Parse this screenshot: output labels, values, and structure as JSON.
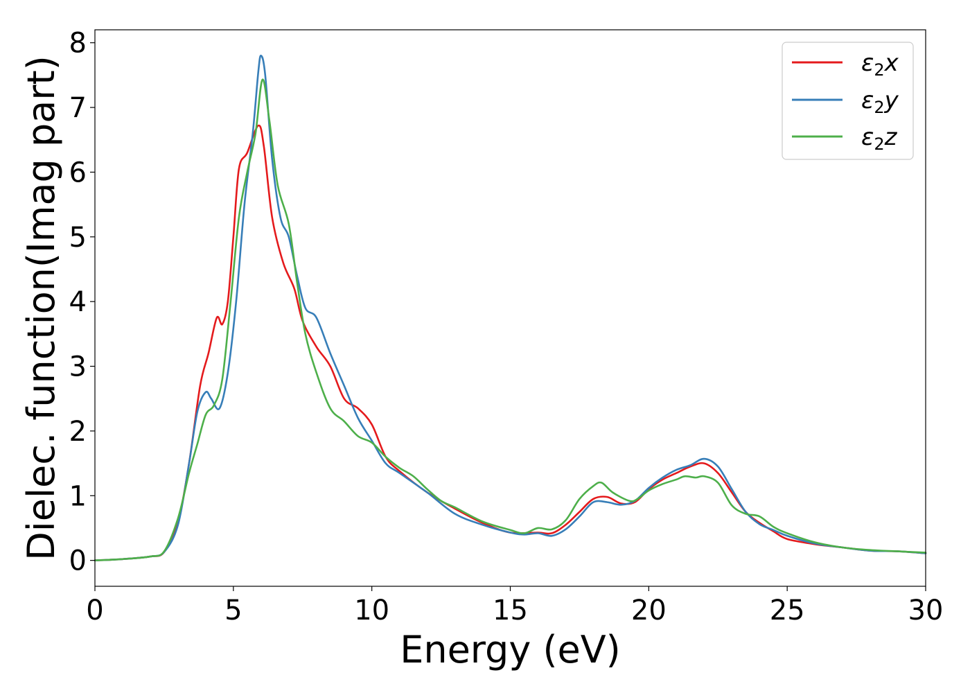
{
  "chart_data": {
    "type": "line",
    "title": "",
    "xlabel": "Energy (eV)",
    "ylabel": "Dielec. function(Imag part)",
    "xlim": [
      0,
      30
    ],
    "ylim": [
      -0.4,
      8.2
    ],
    "xticks": [
      0,
      5,
      10,
      15,
      20,
      25,
      30
    ],
    "yticks": [
      0,
      1,
      2,
      3,
      4,
      5,
      6,
      7,
      8
    ],
    "grid": false,
    "legend_position": "top-right",
    "series": [
      {
        "name": "ε₂x",
        "legend_main": "ε",
        "legend_sub": "2",
        "legend_suffix": "x",
        "color": "#e41a1c",
        "points": [
          [
            0,
            0
          ],
          [
            1,
            0.02
          ],
          [
            2,
            0.06
          ],
          [
            2.5,
            0.13
          ],
          [
            3,
            0.6
          ],
          [
            3.4,
            1.5
          ],
          [
            3.8,
            2.7
          ],
          [
            4.1,
            3.2
          ],
          [
            4.4,
            3.75
          ],
          [
            4.6,
            3.65
          ],
          [
            4.8,
            4.0
          ],
          [
            5.0,
            5.0
          ],
          [
            5.2,
            6.05
          ],
          [
            5.5,
            6.3
          ],
          [
            5.9,
            6.72
          ],
          [
            6.1,
            6.4
          ],
          [
            6.4,
            5.3
          ],
          [
            6.8,
            4.6
          ],
          [
            7.2,
            4.2
          ],
          [
            7.5,
            3.7
          ],
          [
            8.0,
            3.3
          ],
          [
            8.5,
            3.0
          ],
          [
            9.0,
            2.5
          ],
          [
            9.5,
            2.35
          ],
          [
            10.0,
            2.1
          ],
          [
            10.5,
            1.6
          ],
          [
            11.0,
            1.38
          ],
          [
            12.0,
            1.05
          ],
          [
            13.0,
            0.8
          ],
          [
            14.0,
            0.58
          ],
          [
            15.0,
            0.43
          ],
          [
            16.0,
            0.43
          ],
          [
            16.5,
            0.42
          ],
          [
            17.0,
            0.55
          ],
          [
            17.5,
            0.75
          ],
          [
            18.0,
            0.95
          ],
          [
            18.5,
            0.98
          ],
          [
            19.0,
            0.88
          ],
          [
            19.5,
            0.9
          ],
          [
            20.0,
            1.1
          ],
          [
            20.5,
            1.25
          ],
          [
            21.0,
            1.35
          ],
          [
            21.5,
            1.45
          ],
          [
            22.0,
            1.5
          ],
          [
            22.5,
            1.35
          ],
          [
            23.0,
            1.05
          ],
          [
            23.5,
            0.75
          ],
          [
            24.0,
            0.58
          ],
          [
            24.5,
            0.45
          ],
          [
            25.0,
            0.33
          ],
          [
            26.0,
            0.25
          ],
          [
            27.0,
            0.2
          ],
          [
            28.0,
            0.15
          ],
          [
            29.0,
            0.14
          ],
          [
            30.0,
            0.11
          ]
        ]
      },
      {
        "name": "ε₂y",
        "legend_main": "ε",
        "legend_sub": "2",
        "legend_suffix": "y",
        "color": "#377eb8",
        "points": [
          [
            0,
            0
          ],
          [
            1,
            0.02
          ],
          [
            2,
            0.06
          ],
          [
            2.5,
            0.13
          ],
          [
            3,
            0.55
          ],
          [
            3.4,
            1.5
          ],
          [
            3.7,
            2.3
          ],
          [
            4.0,
            2.6
          ],
          [
            4.2,
            2.5
          ],
          [
            4.5,
            2.35
          ],
          [
            4.8,
            2.9
          ],
          [
            5.1,
            4.0
          ],
          [
            5.4,
            5.5
          ],
          [
            5.7,
            6.6
          ],
          [
            5.9,
            7.55
          ],
          [
            6.0,
            7.8
          ],
          [
            6.15,
            7.5
          ],
          [
            6.4,
            6.2
          ],
          [
            6.7,
            5.3
          ],
          [
            7.0,
            5.0
          ],
          [
            7.3,
            4.4
          ],
          [
            7.6,
            3.9
          ],
          [
            8.0,
            3.75
          ],
          [
            8.5,
            3.2
          ],
          [
            9.0,
            2.7
          ],
          [
            9.5,
            2.2
          ],
          [
            10.0,
            1.85
          ],
          [
            10.5,
            1.5
          ],
          [
            11.0,
            1.35
          ],
          [
            12.0,
            1.05
          ],
          [
            13.0,
            0.72
          ],
          [
            14.0,
            0.55
          ],
          [
            15.0,
            0.43
          ],
          [
            15.5,
            0.4
          ],
          [
            16.0,
            0.42
          ],
          [
            16.5,
            0.38
          ],
          [
            17.0,
            0.48
          ],
          [
            17.5,
            0.68
          ],
          [
            18.0,
            0.9
          ],
          [
            18.5,
            0.9
          ],
          [
            19.0,
            0.86
          ],
          [
            19.5,
            0.92
          ],
          [
            20.0,
            1.12
          ],
          [
            20.5,
            1.28
          ],
          [
            21.0,
            1.4
          ],
          [
            21.5,
            1.47
          ],
          [
            22.0,
            1.57
          ],
          [
            22.5,
            1.45
          ],
          [
            23.0,
            1.1
          ],
          [
            23.5,
            0.75
          ],
          [
            24.0,
            0.56
          ],
          [
            24.5,
            0.47
          ],
          [
            25.0,
            0.38
          ],
          [
            26.0,
            0.26
          ],
          [
            27.0,
            0.2
          ],
          [
            28.0,
            0.15
          ],
          [
            29.0,
            0.14
          ],
          [
            30.0,
            0.11
          ]
        ]
      },
      {
        "name": "ε₂z",
        "legend_main": "ε",
        "legend_sub": "2",
        "legend_suffix": "z",
        "color": "#4daf4a",
        "points": [
          [
            0,
            0
          ],
          [
            1,
            0.02
          ],
          [
            2,
            0.06
          ],
          [
            2.5,
            0.14
          ],
          [
            3,
            0.65
          ],
          [
            3.4,
            1.35
          ],
          [
            3.7,
            1.8
          ],
          [
            4.0,
            2.25
          ],
          [
            4.3,
            2.4
          ],
          [
            4.6,
            2.8
          ],
          [
            4.9,
            4.0
          ],
          [
            5.2,
            5.3
          ],
          [
            5.5,
            6.0
          ],
          [
            5.8,
            6.6
          ],
          [
            6.05,
            7.43
          ],
          [
            6.3,
            6.8
          ],
          [
            6.6,
            5.8
          ],
          [
            7.0,
            5.2
          ],
          [
            7.3,
            4.3
          ],
          [
            7.6,
            3.5
          ],
          [
            8.0,
            2.9
          ],
          [
            8.5,
            2.35
          ],
          [
            9.0,
            2.15
          ],
          [
            9.5,
            1.92
          ],
          [
            10.0,
            1.82
          ],
          [
            10.5,
            1.6
          ],
          [
            11.0,
            1.43
          ],
          [
            11.5,
            1.3
          ],
          [
            12.0,
            1.1
          ],
          [
            12.5,
            0.92
          ],
          [
            13.0,
            0.82
          ],
          [
            14.0,
            0.6
          ],
          [
            15.0,
            0.47
          ],
          [
            15.5,
            0.42
          ],
          [
            16.0,
            0.5
          ],
          [
            16.5,
            0.48
          ],
          [
            17.0,
            0.62
          ],
          [
            17.5,
            0.95
          ],
          [
            18.0,
            1.15
          ],
          [
            18.3,
            1.2
          ],
          [
            18.7,
            1.05
          ],
          [
            19.3,
            0.92
          ],
          [
            19.6,
            0.95
          ],
          [
            20.0,
            1.08
          ],
          [
            20.5,
            1.18
          ],
          [
            21.0,
            1.25
          ],
          [
            21.3,
            1.3
          ],
          [
            21.7,
            1.28
          ],
          [
            22.0,
            1.3
          ],
          [
            22.5,
            1.2
          ],
          [
            23.0,
            0.85
          ],
          [
            23.5,
            0.72
          ],
          [
            24.0,
            0.68
          ],
          [
            24.5,
            0.52
          ],
          [
            25.0,
            0.42
          ],
          [
            26.0,
            0.28
          ],
          [
            27.0,
            0.2
          ],
          [
            28.0,
            0.16
          ],
          [
            29.0,
            0.14
          ],
          [
            30.0,
            0.12
          ]
        ]
      }
    ]
  }
}
